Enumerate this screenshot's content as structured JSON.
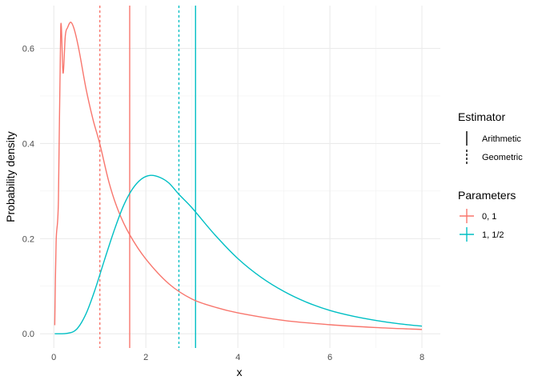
{
  "chart_data": {
    "type": "line",
    "title": "",
    "xlabel": "x",
    "ylabel": "Probability density",
    "xlim": [
      -0.3,
      8.4
    ],
    "ylim": [
      -0.03,
      0.69
    ],
    "x_ticks": [
      0,
      2,
      4,
      6,
      8
    ],
    "x_tick_labels": [
      "0",
      "2",
      "4",
      "6",
      "8"
    ],
    "y_ticks": [
      0.0,
      0.2,
      0.4,
      0.6
    ],
    "y_tick_labels": [
      "0.0",
      "0.2",
      "0.4",
      "0.6"
    ],
    "grid": true,
    "legend_position": "right",
    "series": [
      {
        "name": "0, 1",
        "color": "#F8766D",
        "x": [
          0.02,
          0.05,
          0.1,
          0.15,
          0.2,
          0.25,
          0.3,
          0.37,
          0.45,
          0.55,
          0.7,
          0.85,
          1.0,
          1.2,
          1.4,
          1.65,
          2.0,
          2.5,
          3.0,
          3.5,
          4.0,
          5.0,
          6.0,
          7.0,
          8.0
        ],
        "values": [
          0.018,
          0.194,
          0.282,
          0.644,
          0.548,
          0.627,
          0.644,
          0.655,
          0.638,
          0.595,
          0.515,
          0.451,
          0.399,
          0.318,
          0.259,
          0.208,
          0.157,
          0.105,
          0.073,
          0.056,
          0.044,
          0.028,
          0.019,
          0.013,
          0.009
        ],
        "arithmetic_mean": 1.6487,
        "geometric_mean": 1.0
      },
      {
        "name": "1, 1/2",
        "color": "#00BFC4",
        "x": [
          0.02,
          0.3,
          0.5,
          0.7,
          0.9,
          1.1,
          1.3,
          1.5,
          1.7,
          1.9,
          2.1,
          2.3,
          2.5,
          2.72,
          3.0,
          3.5,
          4.0,
          4.5,
          5.0,
          5.5,
          6.0,
          6.5,
          7.0,
          7.5,
          8.0
        ],
        "values": [
          0.0,
          0.001,
          0.01,
          0.042,
          0.094,
          0.155,
          0.214,
          0.266,
          0.303,
          0.325,
          0.333,
          0.329,
          0.317,
          0.293,
          0.265,
          0.208,
          0.158,
          0.119,
          0.089,
          0.066,
          0.049,
          0.037,
          0.028,
          0.021,
          0.016
        ],
        "arithmetic_mean": 3.0802,
        "geometric_mean": 2.7183
      }
    ],
    "legends": [
      {
        "title": "Estimator",
        "entries": [
          {
            "label": "Arithmetic",
            "linetype": "solid"
          },
          {
            "label": "Geometric",
            "linetype": "dashed"
          }
        ]
      },
      {
        "title": "Parameters",
        "entries": [
          {
            "label": "0, 1",
            "color": "#F8766D"
          },
          {
            "label": "1, 1/2",
            "color": "#00BFC4"
          }
        ]
      }
    ]
  }
}
